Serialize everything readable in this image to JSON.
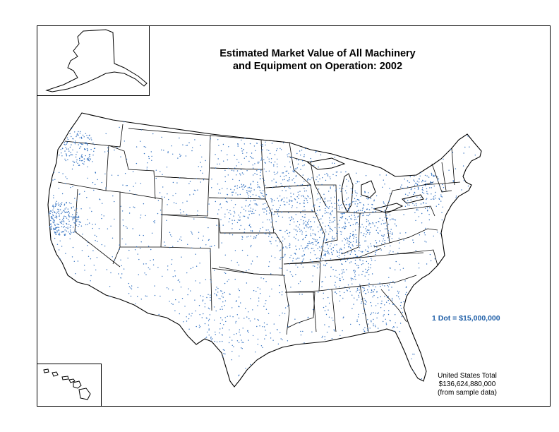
{
  "map": {
    "title_line1": "Estimated Market Value of All Machinery",
    "title_line2": "and Equipment on Operation:  2002",
    "legend": "1 Dot = $15,000,000",
    "total_line1": "United States Total",
    "total_line2": "$136,624,880,000",
    "total_line3": "(from sample data)",
    "dot_color": "#2f6fc0",
    "boundary_color": "#000000",
    "county_color": "#c8c8c8"
  }
}
